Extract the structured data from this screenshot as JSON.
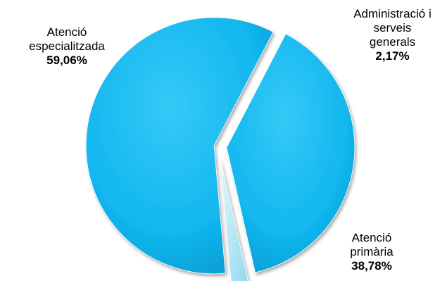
{
  "chart_data": {
    "type": "pie",
    "title": "",
    "slices": [
      {
        "name_lines": [
          "Atenció",
          "especialitzada"
        ],
        "value_label": "59,06%",
        "value": 59.06,
        "color": "#12b7ef"
      },
      {
        "name_lines": [
          "Atenció",
          "primària"
        ],
        "value_label": "38,78%",
        "value": 38.78,
        "color": "#12b7ef"
      },
      {
        "name_lines": [
          "Administració i",
          "serveis",
          "generals"
        ],
        "value_label": "2,17%",
        "value": 2.17,
        "color": "#b7e9f4"
      }
    ]
  }
}
